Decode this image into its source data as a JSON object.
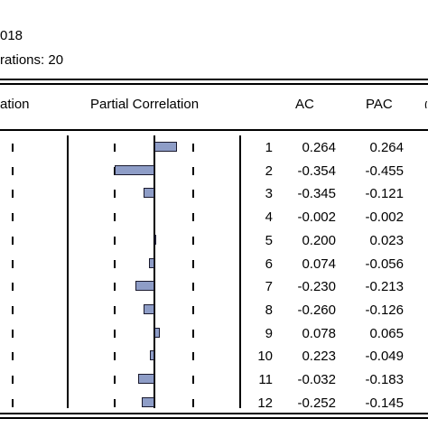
{
  "header": {
    "line1": "018",
    "line2": "rations: 20"
  },
  "columns": {
    "left_partial": "ation",
    "partial_correlation": "Partial Correlation",
    "ac": "AC",
    "pac": "PAC"
  },
  "rows": [
    {
      "lag": "1",
      "ac": "0.264",
      "pac": "0.264",
      "pac_value": 0.264
    },
    {
      "lag": "2",
      "ac": "-0.354",
      "pac": "-0.455",
      "pac_value": -0.455
    },
    {
      "lag": "3",
      "ac": "-0.345",
      "pac": "-0.121",
      "pac_value": -0.121
    },
    {
      "lag": "4",
      "ac": "-0.002",
      "pac": "-0.002",
      "pac_value": -0.002
    },
    {
      "lag": "5",
      "ac": "0.200",
      "pac": "0.023",
      "pac_value": 0.023
    },
    {
      "lag": "6",
      "ac": "0.074",
      "pac": "-0.056",
      "pac_value": -0.056
    },
    {
      "lag": "7",
      "ac": "-0.230",
      "pac": "-0.213",
      "pac_value": -0.213
    },
    {
      "lag": "8",
      "ac": "-0.260",
      "pac": "-0.126",
      "pac_value": -0.126
    },
    {
      "lag": "9",
      "ac": "0.078",
      "pac": "0.065",
      "pac_value": 0.065
    },
    {
      "lag": "10",
      "ac": "0.223",
      "pac": "-0.049",
      "pac_value": -0.049
    },
    {
      "lag": "11",
      "ac": "-0.032",
      "pac": "-0.183",
      "pac_value": -0.183
    },
    {
      "lag": "12",
      "ac": "-0.252",
      "pac": "-0.145",
      "pac_value": -0.145
    }
  ],
  "colors": {
    "bar_fill": "#8e9dc7",
    "bar_border": "#1a1a2e"
  }
}
